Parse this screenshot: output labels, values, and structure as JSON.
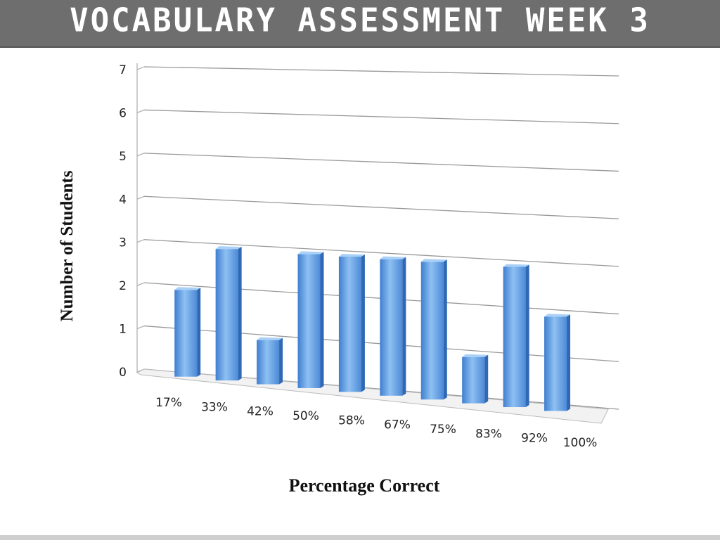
{
  "header": {
    "title": "VOCABULARY ASSESSMENT WEEK 3"
  },
  "chart_data": {
    "type": "bar",
    "title": "",
    "xlabel": "Percentage Correct",
    "ylabel": "Number of Students",
    "categories": [
      "17%",
      "33%",
      "42%",
      "50%",
      "58%",
      "67%",
      "75%",
      "83%",
      "92%",
      "100%"
    ],
    "values": [
      2,
      3,
      1,
      3,
      3,
      3,
      3,
      1,
      3,
      2
    ],
    "ylim": [
      0,
      7
    ],
    "yticks": [
      "0",
      "1",
      "2",
      "3",
      "4",
      "5",
      "6",
      "7"
    ],
    "grid": true,
    "style": "3d-column",
    "bar_color": "#5b9be0"
  }
}
